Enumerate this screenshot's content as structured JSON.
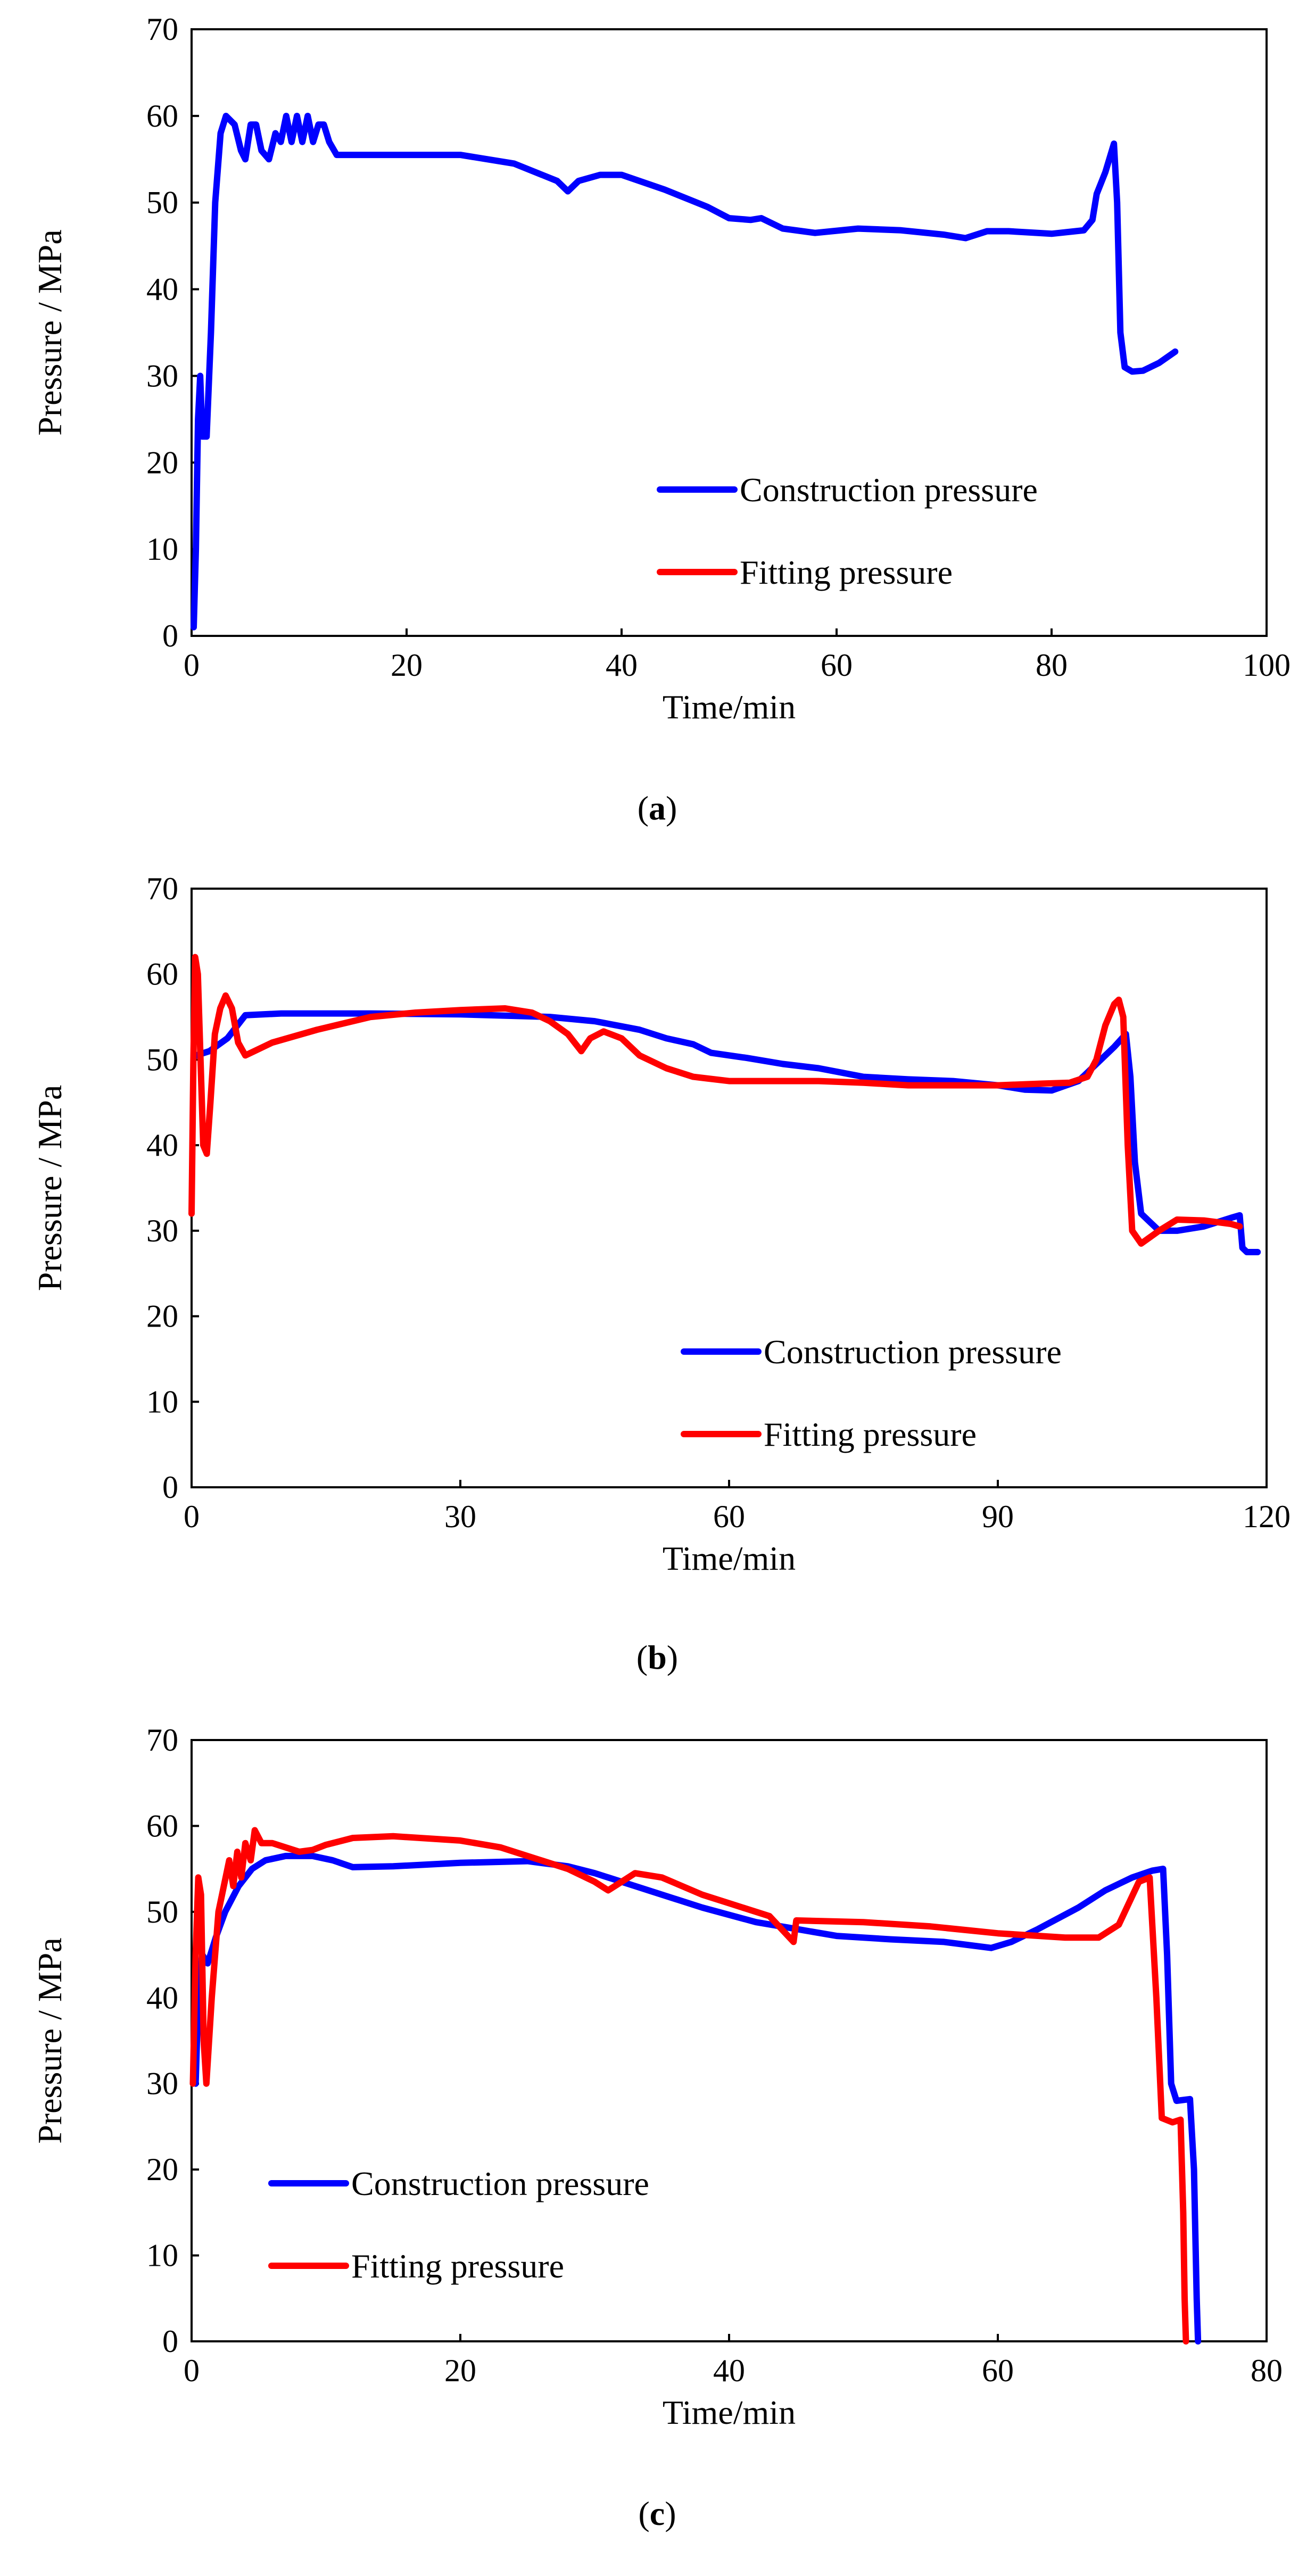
{
  "figure": {
    "captions": [
      "a",
      "b",
      "c"
    ]
  },
  "colors": {
    "construction": "#0000ff",
    "fitting": "#ff0000"
  },
  "chart_data": [
    {
      "id": "a",
      "type": "line",
      "title": "",
      "xlabel": "Time/min",
      "ylabel": "Pressure / MPa",
      "xlim": [
        0,
        100
      ],
      "ylim": [
        0,
        70
      ],
      "xticks": [
        0,
        20,
        40,
        60,
        80,
        100
      ],
      "yticks": [
        0,
        10,
        20,
        30,
        40,
        50,
        60,
        70
      ],
      "legend": {
        "placement": "bottom-right",
        "entries": [
          "Construction pressure",
          "Fitting pressure"
        ]
      },
      "series": [
        {
          "name": "Construction pressure",
          "color": "#0000ff",
          "points": [
            [
              0.2,
              1
            ],
            [
              0.4,
              10
            ],
            [
              0.6,
              25
            ],
            [
              0.8,
              30
            ],
            [
              1.0,
              23
            ],
            [
              1.4,
              23
            ],
            [
              1.8,
              35
            ],
            [
              2.2,
              50
            ],
            [
              2.7,
              58
            ],
            [
              3.2,
              60
            ],
            [
              4.0,
              59
            ],
            [
              4.6,
              56
            ],
            [
              5.0,
              55
            ],
            [
              5.5,
              59
            ],
            [
              6.0,
              59
            ],
            [
              6.5,
              56
            ],
            [
              7.2,
              55
            ],
            [
              7.8,
              58
            ],
            [
              8.3,
              57
            ],
            [
              8.8,
              60
            ],
            [
              9.3,
              57
            ],
            [
              9.8,
              60
            ],
            [
              10.3,
              57
            ],
            [
              10.8,
              60
            ],
            [
              11.3,
              57
            ],
            [
              11.8,
              59
            ],
            [
              12.3,
              59
            ],
            [
              12.8,
              57
            ],
            [
              13.5,
              55.5
            ],
            [
              20,
              55.5
            ],
            [
              25,
              55.5
            ],
            [
              30,
              54.5
            ],
            [
              34,
              52.5
            ],
            [
              35,
              51.3
            ],
            [
              36,
              52.5
            ],
            [
              38,
              53.2
            ],
            [
              40,
              53.2
            ],
            [
              44,
              51.5
            ],
            [
              48,
              49.5
            ],
            [
              50,
              48.2
            ],
            [
              52,
              48
            ],
            [
              53,
              48.2
            ],
            [
              55,
              47
            ],
            [
              58,
              46.5
            ],
            [
              62,
              47
            ],
            [
              66,
              46.8
            ],
            [
              70,
              46.3
            ],
            [
              72,
              45.9
            ],
            [
              74,
              46.7
            ],
            [
              76,
              46.7
            ],
            [
              80,
              46.4
            ],
            [
              83,
              46.8
            ],
            [
              83.8,
              48
            ],
            [
              84.2,
              51
            ],
            [
              85,
              53.5
            ],
            [
              85.8,
              56.8
            ],
            [
              86.1,
              50
            ],
            [
              86.4,
              35
            ],
            [
              86.8,
              31
            ],
            [
              87.5,
              30.5
            ],
            [
              88.5,
              30.6
            ],
            [
              90,
              31.5
            ],
            [
              91.5,
              32.8
            ]
          ]
        },
        {
          "name": "Fitting pressure",
          "color": "#ff0000",
          "points": []
        }
      ]
    },
    {
      "id": "b",
      "type": "line",
      "title": "",
      "xlabel": "Time/min",
      "ylabel": "Pressure / MPa",
      "xlim": [
        0,
        120
      ],
      "ylim": [
        0,
        70
      ],
      "xticks": [
        0,
        30,
        60,
        90,
        120
      ],
      "yticks": [
        0,
        10,
        20,
        30,
        40,
        50,
        60,
        70
      ],
      "legend": {
        "placement": "bottom-right",
        "entries": [
          "Construction pressure",
          "Fitting pressure"
        ]
      },
      "series": [
        {
          "name": "Construction pressure",
          "color": "#0000ff",
          "points": [
            [
              0.5,
              50.5
            ],
            [
              2,
              51
            ],
            [
              4,
              52.5
            ],
            [
              6,
              55.2
            ],
            [
              10,
              55.4
            ],
            [
              20,
              55.4
            ],
            [
              30,
              55.3
            ],
            [
              40,
              55
            ],
            [
              45,
              54.5
            ],
            [
              50,
              53.5
            ],
            [
              53,
              52.5
            ],
            [
              56,
              51.8
            ],
            [
              58,
              50.8
            ],
            [
              62,
              50.2
            ],
            [
              66,
              49.5
            ],
            [
              70,
              49
            ],
            [
              75,
              48
            ],
            [
              80,
              47.7
            ],
            [
              85,
              47.5
            ],
            [
              90,
              47
            ],
            [
              93,
              46.5
            ],
            [
              96,
              46.4
            ],
            [
              99,
              47.5
            ],
            [
              101,
              49.5
            ],
            [
              103,
              51.5
            ],
            [
              104.3,
              53
            ],
            [
              104.8,
              48
            ],
            [
              105.3,
              38
            ],
            [
              106,
              32
            ],
            [
              108,
              30
            ],
            [
              110,
              30
            ],
            [
              113,
              30.5
            ],
            [
              116,
              31.5
            ],
            [
              117,
              31.8
            ],
            [
              117.3,
              28
            ],
            [
              117.8,
              27.5
            ],
            [
              119,
              27.5
            ]
          ]
        },
        {
          "name": "Fitting pressure",
          "color": "#ff0000",
          "points": [
            [
              0,
              32
            ],
            [
              0.2,
              50
            ],
            [
              0.4,
              62
            ],
            [
              0.7,
              60
            ],
            [
              1.0,
              50
            ],
            [
              1.3,
              40
            ],
            [
              1.7,
              39
            ],
            [
              2.1,
              45
            ],
            [
              2.6,
              53
            ],
            [
              3.2,
              56
            ],
            [
              3.8,
              57.5
            ],
            [
              4.5,
              56
            ],
            [
              5.2,
              52
            ],
            [
              6,
              50.5
            ],
            [
              7,
              51
            ],
            [
              9,
              52
            ],
            [
              14,
              53.5
            ],
            [
              20,
              55
            ],
            [
              25,
              55.5
            ],
            [
              30,
              55.8
            ],
            [
              35,
              56
            ],
            [
              38,
              55.5
            ],
            [
              40,
              54.5
            ],
            [
              42,
              53
            ],
            [
              43.5,
              51
            ],
            [
              44.5,
              52.5
            ],
            [
              46,
              53.3
            ],
            [
              48,
              52.5
            ],
            [
              50,
              50.5
            ],
            [
              53,
              49
            ],
            [
              56,
              48
            ],
            [
              60,
              47.5
            ],
            [
              70,
              47.5
            ],
            [
              75,
              47.3
            ],
            [
              80,
              47
            ],
            [
              85,
              47
            ],
            [
              90,
              47
            ],
            [
              95,
              47.2
            ],
            [
              98,
              47.3
            ],
            [
              100,
              48
            ],
            [
              101,
              50
            ],
            [
              102,
              54
            ],
            [
              103,
              56.5
            ],
            [
              103.5,
              57
            ],
            [
              104,
              55
            ],
            [
              104.5,
              40
            ],
            [
              105,
              30
            ],
            [
              106,
              28.5
            ],
            [
              108,
              30
            ],
            [
              110,
              31.3
            ],
            [
              113,
              31.2
            ],
            [
              116,
              30.8
            ],
            [
              117,
              30.5
            ]
          ]
        }
      ]
    },
    {
      "id": "c",
      "type": "line",
      "title": "",
      "xlabel": "Time/min",
      "ylabel": "Pressure / MPa",
      "xlim": [
        0,
        80
      ],
      "ylim": [
        0,
        70
      ],
      "xticks": [
        0,
        20,
        40,
        60,
        80
      ],
      "yticks": [
        0,
        10,
        20,
        30,
        40,
        50,
        60,
        70
      ],
      "legend": {
        "placement": "bottom-left",
        "entries": [
          "Construction pressure",
          "Fitting pressure"
        ]
      },
      "series": [
        {
          "name": "Construction pressure",
          "color": "#0000ff",
          "points": [
            [
              0.3,
              30
            ],
            [
              0.5,
              40
            ],
            [
              0.8,
              45
            ],
            [
              1.2,
              44
            ],
            [
              1.8,
              47
            ],
            [
              2.5,
              50
            ],
            [
              3.5,
              53
            ],
            [
              4.5,
              55
            ],
            [
              5.5,
              56
            ],
            [
              7,
              56.5
            ],
            [
              9,
              56.5
            ],
            [
              10.5,
              56
            ],
            [
              12,
              55.2
            ],
            [
              15,
              55.3
            ],
            [
              20,
              55.7
            ],
            [
              25,
              55.9
            ],
            [
              28,
              55.3
            ],
            [
              30,
              54.5
            ],
            [
              34,
              52.5
            ],
            [
              38,
              50.5
            ],
            [
              42,
              48.8
            ],
            [
              45,
              48
            ],
            [
              48,
              47.2
            ],
            [
              52,
              46.8
            ],
            [
              56,
              46.5
            ],
            [
              59.5,
              45.8
            ],
            [
              61,
              46.5
            ],
            [
              63,
              48
            ],
            [
              66,
              50.5
            ],
            [
              68,
              52.5
            ],
            [
              70,
              54
            ],
            [
              71.5,
              54.8
            ],
            [
              72.3,
              55
            ],
            [
              72.6,
              45
            ],
            [
              72.9,
              30
            ],
            [
              73.3,
              28
            ],
            [
              74.3,
              28.2
            ],
            [
              74.6,
              20
            ],
            [
              74.8,
              5
            ],
            [
              74.9,
              0
            ]
          ]
        },
        {
          "name": "Fitting pressure",
          "color": "#ff0000",
          "points": [
            [
              0.1,
              30
            ],
            [
              0.3,
              45
            ],
            [
              0.5,
              54
            ],
            [
              0.7,
              52
            ],
            [
              0.9,
              35
            ],
            [
              1.1,
              30
            ],
            [
              1.5,
              40
            ],
            [
              2.0,
              50
            ],
            [
              2.4,
              53
            ],
            [
              2.8,
              56
            ],
            [
              3.1,
              53
            ],
            [
              3.4,
              57
            ],
            [
              3.7,
              54
            ],
            [
              4.0,
              58
            ],
            [
              4.4,
              56
            ],
            [
              4.7,
              59.5
            ],
            [
              5.2,
              58
            ],
            [
              6,
              58
            ],
            [
              8,
              57
            ],
            [
              9,
              57.2
            ],
            [
              10,
              57.8
            ],
            [
              12,
              58.6
            ],
            [
              15,
              58.8
            ],
            [
              20,
              58.3
            ],
            [
              23,
              57.5
            ],
            [
              26,
              56
            ],
            [
              28,
              55
            ],
            [
              30,
              53.5
            ],
            [
              31,
              52.5
            ],
            [
              32,
              53.5
            ],
            [
              33,
              54.5
            ],
            [
              35,
              54
            ],
            [
              38,
              52
            ],
            [
              40,
              51
            ],
            [
              43,
              49.5
            ],
            [
              44.8,
              46.5
            ],
            [
              45,
              49
            ],
            [
              50,
              48.8
            ],
            [
              55,
              48.3
            ],
            [
              60,
              47.5
            ],
            [
              65,
              47
            ],
            [
              67.5,
              47
            ],
            [
              69,
              48.5
            ],
            [
              70.5,
              53.5
            ],
            [
              71.3,
              54
            ],
            [
              71.8,
              40
            ],
            [
              72.2,
              26
            ],
            [
              73,
              25.5
            ],
            [
              73.6,
              25.8
            ],
            [
              73.8,
              15
            ],
            [
              73.9,
              5
            ],
            [
              74,
              0
            ]
          ]
        }
      ]
    }
  ]
}
